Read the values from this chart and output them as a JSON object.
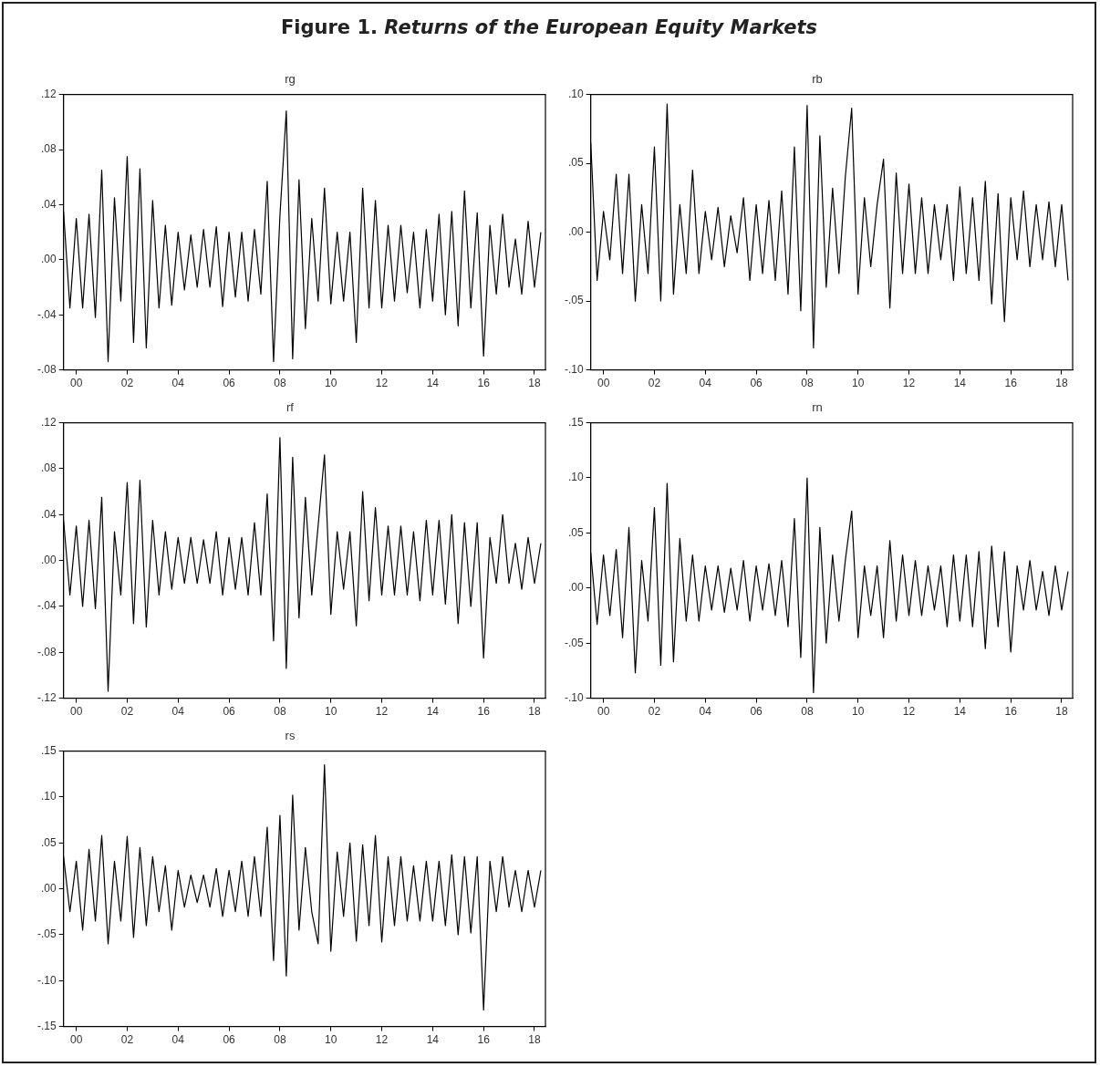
{
  "chart_data": [
    {
      "type": "other",
      "title": "Figure 1. Returns of the European Equity Markets"
    },
    {
      "type": "line",
      "title": "rg",
      "grid": false,
      "marker": "none",
      "x": [
        -0.5,
        -0.25,
        0,
        0.25,
        0.5,
        0.75,
        1,
        1.25,
        1.5,
        1.75,
        2,
        2.25,
        2.5,
        2.75,
        3,
        3.25,
        3.5,
        3.75,
        4,
        4.25,
        4.5,
        4.75,
        5,
        5.25,
        5.5,
        5.75,
        6,
        6.25,
        6.5,
        6.75,
        7,
        7.25,
        7.5,
        7.75,
        8,
        8.25,
        8.5,
        8.75,
        9,
        9.25,
        9.5,
        9.75,
        10,
        10.25,
        10.5,
        10.75,
        11,
        11.25,
        11.5,
        11.75,
        12,
        12.25,
        12.5,
        12.75,
        13,
        13.25,
        13.5,
        13.75,
        14,
        14.25,
        14.5,
        14.75,
        15,
        15.25,
        15.5,
        15.75,
        16,
        16.25,
        16.5,
        16.75,
        17,
        17.25,
        17.5,
        17.75,
        18,
        18.25
      ],
      "xlim": [
        -0.5,
        18.43
      ],
      "xticks": [
        {
          "value": 0,
          "label": "00"
        },
        {
          "value": 2,
          "label": "02"
        },
        {
          "value": 4,
          "label": "04"
        },
        {
          "value": 6,
          "label": "06"
        },
        {
          "value": 8,
          "label": "08"
        },
        10,
        12,
        14,
        16,
        18
      ],
      "ylim": [
        -0.08,
        0.12
      ],
      "yticks": [
        {
          "value": -0.08,
          "label": "-.08"
        },
        {
          "value": -0.04,
          "label": "-.04"
        },
        {
          "value": 0,
          "label": ".00"
        },
        {
          "value": 0.04,
          "label": ".04"
        },
        {
          "value": 0.08,
          "label": ".08"
        },
        {
          "value": 0.12,
          "label": ".12"
        }
      ],
      "series": [
        {
          "color": "#000000",
          "values": [
            0.035,
            -0.035,
            0.03,
            -0.035,
            0.033,
            -0.042,
            0.065,
            -0.074,
            0.045,
            -0.03,
            0.075,
            -0.06,
            0.066,
            -0.064,
            0.043,
            -0.035,
            0.025,
            -0.033,
            0.02,
            -0.022,
            0.018,
            -0.02,
            0.022,
            -0.02,
            0.024,
            -0.034,
            0.02,
            -0.027,
            0.02,
            -0.03,
            0.022,
            -0.025,
            0.057,
            -0.074,
            0.032,
            0.108,
            -0.072,
            0.058,
            -0.05,
            0.03,
            -0.03,
            0.052,
            -0.032,
            0.02,
            -0.03,
            0.02,
            -0.06,
            0.052,
            -0.035,
            0.043,
            -0.035,
            0.025,
            -0.03,
            0.025,
            -0.024,
            0.02,
            -0.035,
            0.022,
            -0.03,
            0.033,
            -0.04,
            0.035,
            -0.048,
            0.05,
            -0.035,
            0.034,
            -0.07,
            0.025,
            -0.025,
            0.033,
            -0.02,
            0.015,
            -0.025,
            0.028,
            -0.02,
            0.02
          ]
        }
      ]
    },
    {
      "type": "line",
      "title": "rb",
      "grid": false,
      "marker": "none",
      "x": [
        -0.5,
        -0.25,
        0,
        0.25,
        0.5,
        0.75,
        1,
        1.25,
        1.5,
        1.75,
        2,
        2.25,
        2.5,
        2.75,
        3,
        3.25,
        3.5,
        3.75,
        4,
        4.25,
        4.5,
        4.75,
        5,
        5.25,
        5.5,
        5.75,
        6,
        6.25,
        6.5,
        6.75,
        7,
        7.25,
        7.5,
        7.75,
        8,
        8.25,
        8.5,
        8.75,
        9,
        9.25,
        9.5,
        9.75,
        10,
        10.25,
        10.5,
        10.75,
        11,
        11.25,
        11.5,
        11.75,
        12,
        12.25,
        12.5,
        12.75,
        13,
        13.25,
        13.5,
        13.75,
        14,
        14.25,
        14.5,
        14.75,
        15,
        15.25,
        15.5,
        15.75,
        16,
        16.25,
        16.5,
        16.75,
        17,
        17.25,
        17.5,
        17.75,
        18,
        18.25
      ],
      "xlim": [
        -0.5,
        18.43
      ],
      "xticks": [
        {
          "value": 0,
          "label": "00"
        },
        {
          "value": 2,
          "label": "02"
        },
        {
          "value": 4,
          "label": "04"
        },
        {
          "value": 6,
          "label": "06"
        },
        {
          "value": 8,
          "label": "08"
        },
        10,
        12,
        14,
        16,
        18
      ],
      "ylim": [
        -0.1,
        0.1
      ],
      "yticks": [
        {
          "value": -0.1,
          "label": "-.10"
        },
        {
          "value": -0.05,
          "label": "-.05"
        },
        {
          "value": 0,
          "label": ".00"
        },
        {
          "value": 0.05,
          "label": ".05"
        },
        {
          "value": 0.1,
          "label": ".10"
        }
      ],
      "series": [
        {
          "color": "#000000",
          "values": [
            0.065,
            -0.035,
            0.015,
            -0.02,
            0.042,
            -0.03,
            0.042,
            -0.05,
            0.02,
            -0.03,
            0.062,
            -0.05,
            0.093,
            -0.045,
            0.02,
            -0.03,
            0.045,
            -0.03,
            0.015,
            -0.02,
            0.018,
            -0.025,
            0.012,
            -0.015,
            0.025,
            -0.035,
            0.02,
            -0.03,
            0.023,
            -0.035,
            0.03,
            -0.045,
            0.062,
            -0.057,
            0.092,
            -0.084,
            0.07,
            -0.04,
            0.032,
            -0.03,
            0.04,
            0.09,
            -0.045,
            0.025,
            -0.025,
            0.02,
            0.053,
            -0.055,
            0.043,
            -0.03,
            0.035,
            -0.03,
            0.025,
            -0.03,
            0.02,
            -0.02,
            0.02,
            -0.035,
            0.033,
            -0.03,
            0.025,
            -0.035,
            0.037,
            -0.052,
            0.028,
            -0.065,
            0.025,
            -0.02,
            0.03,
            -0.025,
            0.02,
            -0.02,
            0.022,
            -0.025,
            0.02,
            -0.035
          ]
        }
      ]
    },
    {
      "type": "line",
      "title": "rf",
      "grid": false,
      "marker": "none",
      "x": [
        -0.5,
        -0.25,
        0,
        0.25,
        0.5,
        0.75,
        1,
        1.25,
        1.5,
        1.75,
        2,
        2.25,
        2.5,
        2.75,
        3,
        3.25,
        3.5,
        3.75,
        4,
        4.25,
        4.5,
        4.75,
        5,
        5.25,
        5.5,
        5.75,
        6,
        6.25,
        6.5,
        6.75,
        7,
        7.25,
        7.5,
        7.75,
        8,
        8.25,
        8.5,
        8.75,
        9,
        9.25,
        9.5,
        9.75,
        10,
        10.25,
        10.5,
        10.75,
        11,
        11.25,
        11.5,
        11.75,
        12,
        12.25,
        12.5,
        12.75,
        13,
        13.25,
        13.5,
        13.75,
        14,
        14.25,
        14.5,
        14.75,
        15,
        15.25,
        15.5,
        15.75,
        16,
        16.25,
        16.5,
        16.75,
        17,
        17.25,
        17.5,
        17.75,
        18,
        18.25
      ],
      "xlim": [
        -0.5,
        18.43
      ],
      "xticks": [
        {
          "value": 0,
          "label": "00"
        },
        {
          "value": 2,
          "label": "02"
        },
        {
          "value": 4,
          "label": "04"
        },
        {
          "value": 6,
          "label": "06"
        },
        {
          "value": 8,
          "label": "08"
        },
        10,
        12,
        14,
        16,
        18
      ],
      "ylim": [
        -0.12,
        0.12
      ],
      "yticks": [
        {
          "value": -0.12,
          "label": "-.12"
        },
        {
          "value": -0.08,
          "label": "-.08"
        },
        {
          "value": -0.04,
          "label": "-.04"
        },
        {
          "value": 0,
          "label": ".00"
        },
        {
          "value": 0.04,
          "label": ".04"
        },
        {
          "value": 0.08,
          "label": ".08"
        },
        {
          "value": 0.12,
          "label": ".12"
        }
      ],
      "series": [
        {
          "color": "#000000",
          "values": [
            0.035,
            -0.03,
            0.03,
            -0.04,
            0.035,
            -0.042,
            0.055,
            -0.114,
            0.025,
            -0.03,
            0.068,
            -0.055,
            0.07,
            -0.058,
            0.035,
            -0.03,
            0.025,
            -0.025,
            0.02,
            -0.02,
            0.02,
            -0.02,
            0.018,
            -0.02,
            0.025,
            -0.03,
            0.02,
            -0.025,
            0.02,
            -0.03,
            0.033,
            -0.03,
            0.058,
            -0.07,
            0.107,
            -0.094,
            0.09,
            -0.05,
            0.055,
            -0.03,
            0.03,
            0.092,
            -0.047,
            0.025,
            -0.025,
            0.025,
            -0.057,
            0.06,
            -0.035,
            0.046,
            -0.03,
            0.03,
            -0.03,
            0.03,
            -0.03,
            0.025,
            -0.035,
            0.035,
            -0.03,
            0.035,
            -0.038,
            0.04,
            -0.055,
            0.033,
            -0.04,
            0.033,
            -0.085,
            0.02,
            -0.02,
            0.04,
            -0.02,
            0.015,
            -0.025,
            0.02,
            -0.02,
            0.015
          ]
        }
      ]
    },
    {
      "type": "line",
      "title": "rn",
      "grid": false,
      "marker": "none",
      "x": [
        -0.5,
        -0.25,
        0,
        0.25,
        0.5,
        0.75,
        1,
        1.25,
        1.5,
        1.75,
        2,
        2.25,
        2.5,
        2.75,
        3,
        3.25,
        3.5,
        3.75,
        4,
        4.25,
        4.5,
        4.75,
        5,
        5.25,
        5.5,
        5.75,
        6,
        6.25,
        6.5,
        6.75,
        7,
        7.25,
        7.5,
        7.75,
        8,
        8.25,
        8.5,
        8.75,
        9,
        9.25,
        9.5,
        9.75,
        10,
        10.25,
        10.5,
        10.75,
        11,
        11.25,
        11.5,
        11.75,
        12,
        12.25,
        12.5,
        12.75,
        13,
        13.25,
        13.5,
        13.75,
        14,
        14.25,
        14.5,
        14.75,
        15,
        15.25,
        15.5,
        15.75,
        16,
        16.25,
        16.5,
        16.75,
        17,
        17.25,
        17.5,
        17.75,
        18,
        18.25
      ],
      "xlim": [
        -0.5,
        18.43
      ],
      "xticks": [
        {
          "value": 0,
          "label": "00"
        },
        {
          "value": 2,
          "label": "02"
        },
        {
          "value": 4,
          "label": "04"
        },
        {
          "value": 6,
          "label": "06"
        },
        {
          "value": 8,
          "label": "08"
        },
        10,
        12,
        14,
        16,
        18
      ],
      "ylim": [
        -0.1,
        0.15
      ],
      "yticks": [
        {
          "value": -0.1,
          "label": "-.10"
        },
        {
          "value": -0.05,
          "label": "-.05"
        },
        {
          "value": 0,
          "label": ".00"
        },
        {
          "value": 0.05,
          "label": ".05"
        },
        {
          "value": 0.1,
          "label": ".10"
        },
        {
          "value": 0.15,
          "label": ".15"
        }
      ],
      "series": [
        {
          "color": "#000000",
          "values": [
            0.032,
            -0.033,
            0.03,
            -0.025,
            0.035,
            -0.045,
            0.055,
            -0.077,
            0.025,
            -0.03,
            0.073,
            -0.07,
            0.095,
            -0.067,
            0.045,
            -0.03,
            0.03,
            -0.03,
            0.02,
            -0.02,
            0.02,
            -0.022,
            0.018,
            -0.02,
            0.025,
            -0.03,
            0.02,
            -0.02,
            0.022,
            -0.025,
            0.025,
            -0.035,
            0.063,
            -0.063,
            0.1,
            -0.095,
            0.055,
            -0.05,
            0.03,
            -0.03,
            0.025,
            0.07,
            -0.045,
            0.02,
            -0.025,
            0.02,
            -0.045,
            0.043,
            -0.03,
            0.03,
            -0.025,
            0.025,
            -0.025,
            0.02,
            -0.02,
            0.02,
            -0.035,
            0.03,
            -0.03,
            0.03,
            -0.035,
            0.033,
            -0.055,
            0.038,
            -0.035,
            0.033,
            -0.058,
            0.02,
            -0.02,
            0.025,
            -0.02,
            0.015,
            -0.025,
            0.02,
            -0.02,
            0.015
          ]
        }
      ]
    },
    {
      "type": "line",
      "title": "rs",
      "grid": false,
      "marker": "none",
      "x": [
        -0.5,
        -0.25,
        0,
        0.25,
        0.5,
        0.75,
        1,
        1.25,
        1.5,
        1.75,
        2,
        2.25,
        2.5,
        2.75,
        3,
        3.25,
        3.5,
        3.75,
        4,
        4.25,
        4.5,
        4.75,
        5,
        5.25,
        5.5,
        5.75,
        6,
        6.25,
        6.5,
        6.75,
        7,
        7.25,
        7.5,
        7.75,
        8,
        8.25,
        8.5,
        8.75,
        9,
        9.25,
        9.5,
        9.75,
        10,
        10.25,
        10.5,
        10.75,
        11,
        11.25,
        11.5,
        11.75,
        12,
        12.25,
        12.5,
        12.75,
        13,
        13.25,
        13.5,
        13.75,
        14,
        14.25,
        14.5,
        14.75,
        15,
        15.25,
        15.5,
        15.75,
        16,
        16.25,
        16.5,
        16.75,
        17,
        17.25,
        17.5,
        17.75,
        18,
        18.25
      ],
      "xlim": [
        -0.5,
        18.43
      ],
      "xticks": [
        {
          "value": 0,
          "label": "00"
        },
        {
          "value": 2,
          "label": "02"
        },
        {
          "value": 4,
          "label": "04"
        },
        {
          "value": 6,
          "label": "06"
        },
        {
          "value": 8,
          "label": "08"
        },
        10,
        12,
        14,
        16,
        18
      ],
      "ylim": [
        -0.15,
        0.15
      ],
      "yticks": [
        {
          "value": -0.15,
          "label": "-.15"
        },
        {
          "value": -0.1,
          "label": "-.10"
        },
        {
          "value": -0.05,
          "label": "-.05"
        },
        {
          "value": 0,
          "label": ".00"
        },
        {
          "value": 0.05,
          "label": ".05"
        },
        {
          "value": 0.1,
          "label": ".10"
        },
        {
          "value": 0.15,
          "label": ".15"
        }
      ],
      "series": [
        {
          "color": "#000000",
          "values": [
            0.035,
            -0.025,
            0.03,
            -0.045,
            0.043,
            -0.035,
            0.058,
            -0.06,
            0.03,
            -0.035,
            0.057,
            -0.053,
            0.045,
            -0.04,
            0.035,
            -0.025,
            0.025,
            -0.045,
            0.02,
            -0.02,
            0.015,
            -0.015,
            0.015,
            -0.02,
            0.022,
            -0.03,
            0.02,
            -0.025,
            0.03,
            -0.03,
            0.035,
            -0.03,
            0.067,
            -0.078,
            0.08,
            -0.095,
            0.102,
            -0.045,
            0.045,
            -0.025,
            -0.06,
            0.135,
            -0.068,
            0.04,
            -0.03,
            0.05,
            -0.057,
            0.048,
            -0.04,
            0.058,
            -0.058,
            0.035,
            -0.04,
            0.035,
            -0.035,
            0.025,
            -0.035,
            0.03,
            -0.035,
            0.03,
            -0.04,
            0.037,
            -0.05,
            0.035,
            -0.048,
            0.035,
            -0.132,
            0.03,
            -0.025,
            0.035,
            -0.02,
            0.02,
            -0.025,
            0.02,
            -0.02,
            0.02
          ]
        }
      ]
    }
  ]
}
